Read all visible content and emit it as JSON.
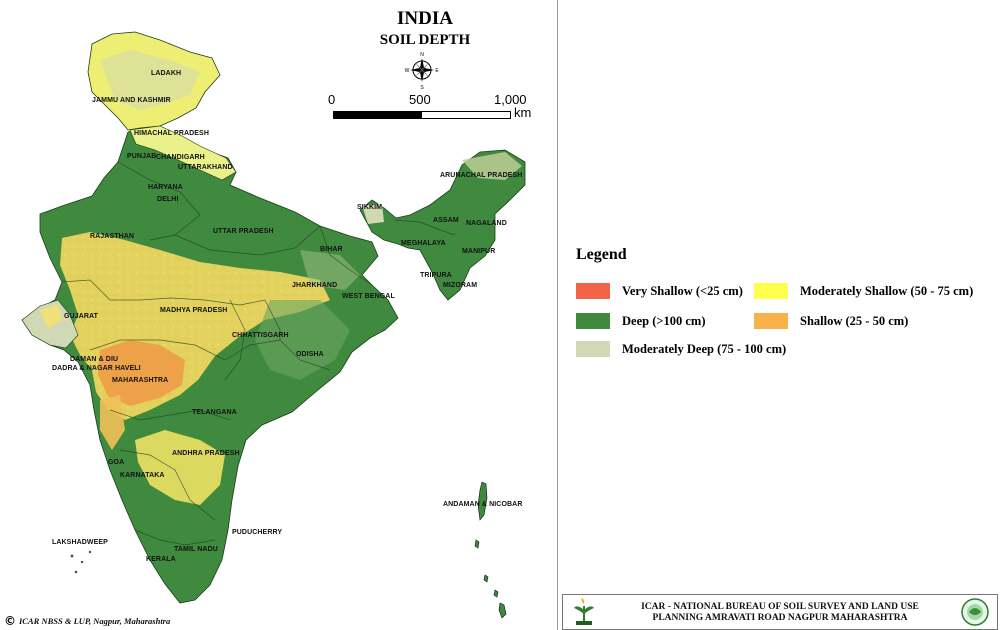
{
  "title": "INDIA",
  "subtitle": "SOIL DEPTH",
  "compass": {
    "n": "N",
    "s": "S",
    "e": "E",
    "w": "W"
  },
  "scale": {
    "labels": [
      "0",
      "500",
      "1,000"
    ],
    "unit": "km"
  },
  "states": [
    "LADAKH",
    "JAMMU AND KASHMIR",
    "HIMACHAL PRADESH",
    "PUNJAB",
    "CHANDIGARH",
    "UTTARAKHAND",
    "HARYANA",
    "DELHI",
    "RAJASTHAN",
    "UTTAR PRADESH",
    "BIHAR",
    "SIKKIM",
    "ARUNACHAL PRADESH",
    "ASSAM",
    "NAGALAND",
    "MEGHALAYA",
    "MANIPUR",
    "TRIPURA",
    "MIZORAM",
    "JHARKHAND",
    "WEST BENGAL",
    "MADHYA PRADESH",
    "GUJARAT",
    "CHHATTISGARH",
    "ODISHA",
    "DAMAN & DIU",
    "DADRA & NAGAR HAVELI",
    "MAHARASHTRA",
    "TELANGANA",
    "ANDHRA PRADESH",
    "GOA",
    "KARNATAKA",
    "PUDUCHERRY",
    "TAMIL NADU",
    "KERALA",
    "LAKSHADWEEP",
    "ANDAMAN & NICOBAR"
  ],
  "legend": {
    "title": "Legend",
    "items": [
      {
        "label": "Very Shallow (<25 cm)",
        "color": "#f26347"
      },
      {
        "label": "Moderately Shallow (50 - 75 cm)",
        "color": "#ffff4d"
      },
      {
        "label": "Deep (>100 cm)",
        "color": "#3f8a3f"
      },
      {
        "label": "Shallow (25 - 50 cm)",
        "color": "#f7b24a"
      },
      {
        "label": "Moderately Deep (75 - 100 cm)",
        "color": "#d0d9b4"
      }
    ]
  },
  "copyright": "ICAR NBSS & LUP, Nagpur, Maharashtra",
  "footer": {
    "line1": "ICAR - NATIONAL BUREAU OF SOIL SURVEY AND LAND USE",
    "line2": "PLANNING AMRAVATI ROAD NAGPUR MAHARASHTRA"
  }
}
